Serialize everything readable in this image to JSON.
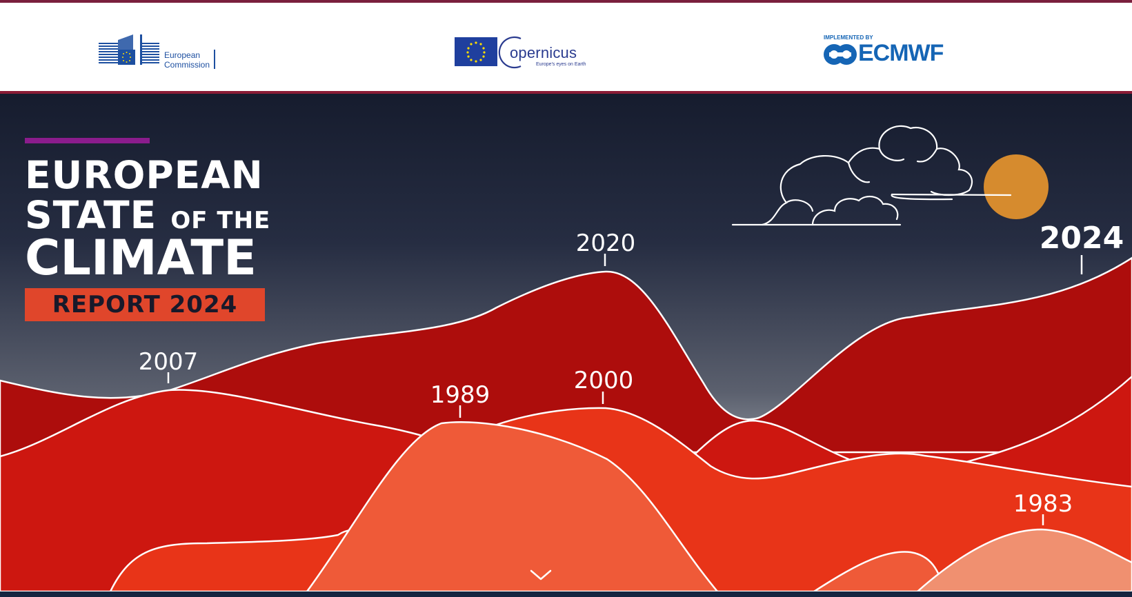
{
  "header": {
    "logos": {
      "european_commission": {
        "text": "European\nCommission",
        "color": "#1d4fa0"
      },
      "copernicus": {
        "wordmark": "opernicus",
        "tagline": "Europe's eyes on Earth",
        "color": "#2a3b8f"
      },
      "ecmwf": {
        "implemented_by": "IMPLEMENTED BY",
        "wordmark": "ECMWF",
        "color": "#1565b5"
      }
    },
    "rule_color": "#8a1c36"
  },
  "hero": {
    "title": {
      "line1": "EUROPEAN",
      "line2_main": "STATE",
      "line2_small": "OF THE",
      "line3": "CLIMATE",
      "report_label": "REPORT 2024"
    },
    "year_labels": {
      "y2007": "2007",
      "y2020": "2020",
      "y2024": "2024",
      "y1989": "1989",
      "y2000": "2000",
      "y1983": "1983"
    },
    "colors": {
      "sky_top": "#161c2e",
      "sky_bottom": "#8a8f99",
      "accent_purple": "#8b1c8d",
      "report_box": "#e0462b",
      "sun": "#d68b2e",
      "hill_dark": "#ad0d0c",
      "hill_red": "#cd1710",
      "hill_orange": "#e83418",
      "hill_coral": "#ef5a38",
      "hill_peach": "#f09070"
    }
  },
  "scroll_hint": {
    "icon": "chevron-down-icon"
  }
}
